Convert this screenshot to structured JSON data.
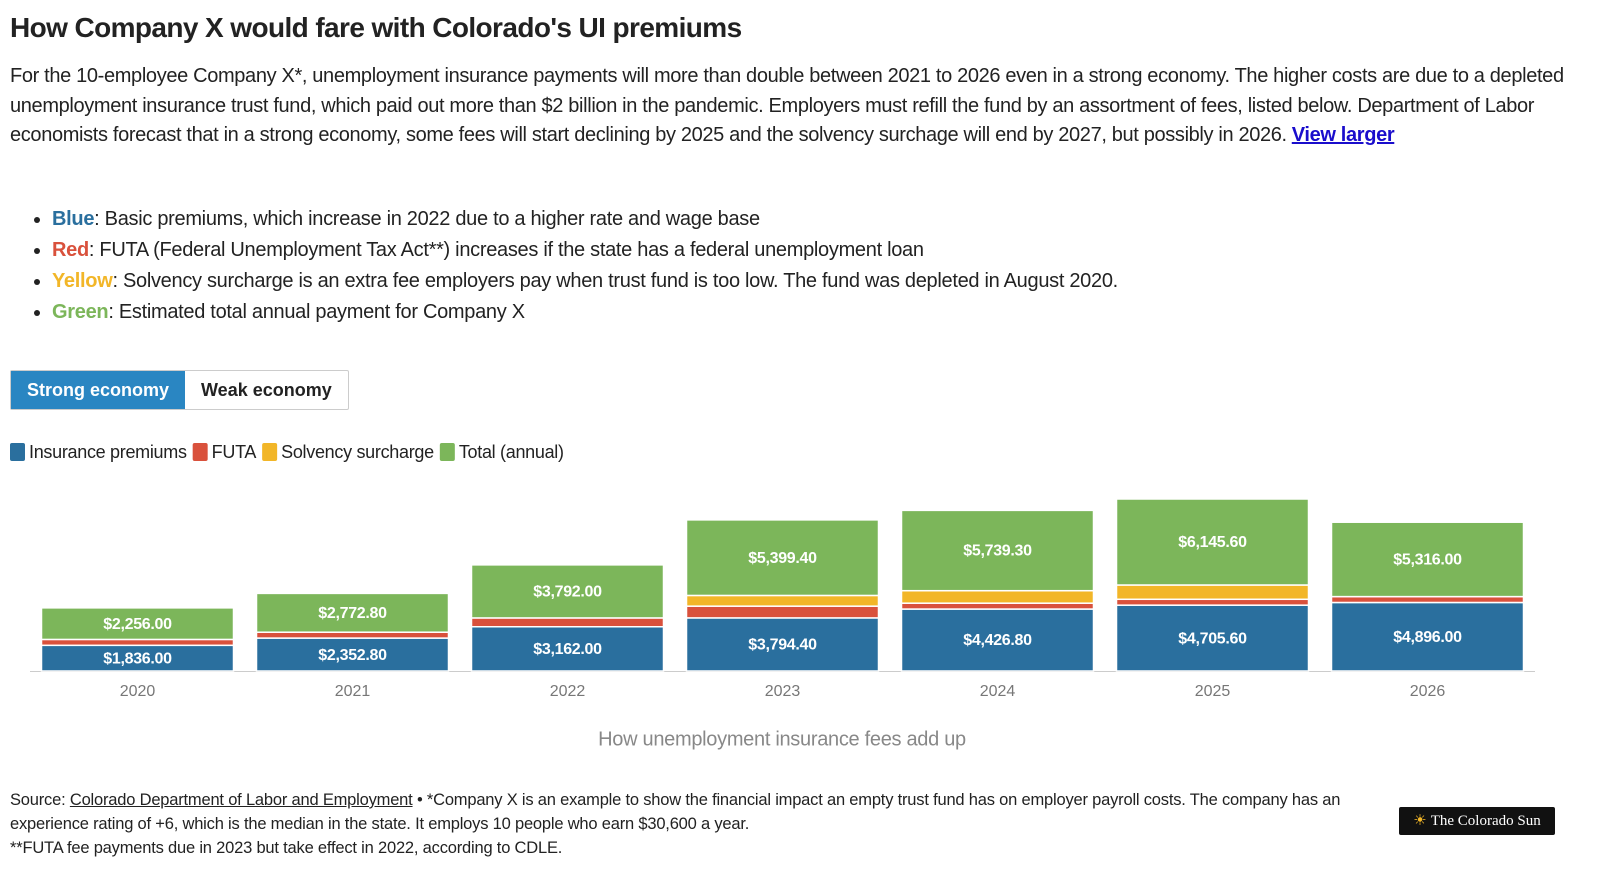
{
  "header": {
    "title": "How Company X would fare with Colorado's UI premiums",
    "description": "For the 10-employee Company X*, unemployment insurance payments will more than double between 2021 to 2026 even in a strong economy. The higher costs are due to a depleted unemployment insurance trust fund, which paid out more than $2 billion in the pandemic. Employers must refill the fund by an assortment of fees, listed below. Department of Labor economists forecast that in a strong economy, some fees will start declining by 2025 and the solvency surchage will end by 2027, but possibly in 2026.",
    "link": "View larger"
  },
  "notes": [
    {
      "label": "Blue",
      "color": "#2a6f9e",
      "text": ": Basic premiums, which increase in 2022 due to a higher rate and wage base"
    },
    {
      "label": "Red",
      "color": "#d9513c",
      "text": ": FUTA (Federal Unemployment Tax Act**) increases if the state has a federal unemployment loan"
    },
    {
      "label": "Yellow",
      "color": "#f2b628",
      "text": ": Solvency surcharge is an extra fee employers pay when trust fund is too low. The fund was depleted in August 2020."
    },
    {
      "label": "Green",
      "color": "#7cb65a",
      "text": ": Estimated total annual payment for Company X"
    }
  ],
  "tabs": [
    "Strong economy",
    "Weak economy"
  ],
  "chart_data": {
    "type": "bar",
    "stacked": true,
    "categories": [
      "2020",
      "2021",
      "2022",
      "2023",
      "2024",
      "2025",
      "2026"
    ],
    "series": [
      {
        "name": "Insurance premiums",
        "color": "#2a6f9e",
        "values": [
          1836,
          2352.8,
          3162,
          3794.4,
          4426.8,
          4705.6,
          4896
        ],
        "value_labels": [
          "$1,836.00",
          "$2,352.80",
          "$3,162.00",
          "$3,794.40",
          "$4,426.80",
          "$4,705.60",
          "$4,896.00"
        ]
      },
      {
        "name": "FUTA",
        "color": "#d9513c",
        "values": [
          420,
          420,
          630,
          840,
          420,
          420,
          420
        ]
      },
      {
        "name": "Solvency surcharge",
        "color": "#f2b628",
        "values": [
          0,
          0,
          0,
          765,
          892.5,
          1020,
          0
        ]
      },
      {
        "name": "Total (annual)",
        "color": "#7cb65a",
        "values": [
          2256,
          2772.8,
          3792,
          5399.4,
          5739.3,
          6145.6,
          5316
        ],
        "value_labels": [
          "$2,256.00",
          "$2,772.80",
          "$3,792.00",
          "$5,399.40",
          "$5,739.30",
          "$6,145.60",
          "$5,316.00"
        ]
      }
    ],
    "x_label": "How unemployment insurance fees add up",
    "legend": "top-left"
  },
  "footer": {
    "source_prefix": "Source:",
    "source_link": "Colorado Department of Labor and Employment",
    "source_note": "• *Company X is an example to show the financial impact an empty trust fund has on employer payroll costs. The company has an experience rating of +6, which is the median in the state. It employs 10 people who earn $30,600 a year.",
    "note2": "**FUTA fee payments due in 2023 but take effect in 2022, according to CDLE.",
    "logo": "The Colorado Sun"
  }
}
